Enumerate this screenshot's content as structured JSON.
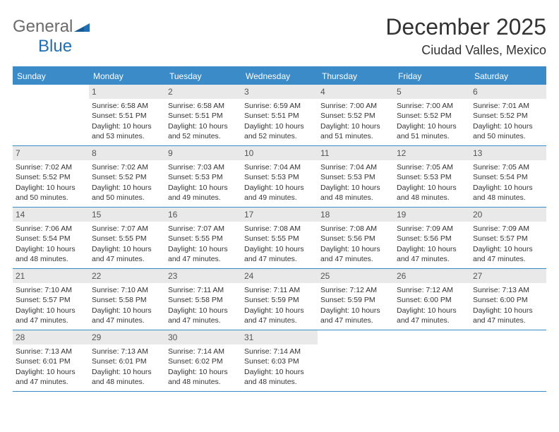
{
  "logo": {
    "word1": "General",
    "word2": "Blue"
  },
  "header": {
    "title": "December 2025",
    "subtitle": "Ciudad Valles, Mexico"
  },
  "colors": {
    "header_bar": "#3b8bc9",
    "daynum_bg": "#e9e9e9",
    "text": "#333333",
    "logo_gray": "#6b6b6b",
    "logo_blue": "#1f6fb2"
  },
  "weekdays": [
    "Sunday",
    "Monday",
    "Tuesday",
    "Wednesday",
    "Thursday",
    "Friday",
    "Saturday"
  ],
  "weeks": [
    [
      {
        "day": null
      },
      {
        "day": "1",
        "sunrise": "Sunrise: 6:58 AM",
        "sunset": "Sunset: 5:51 PM",
        "daylight": "Daylight: 10 hours and 53 minutes."
      },
      {
        "day": "2",
        "sunrise": "Sunrise: 6:58 AM",
        "sunset": "Sunset: 5:51 PM",
        "daylight": "Daylight: 10 hours and 52 minutes."
      },
      {
        "day": "3",
        "sunrise": "Sunrise: 6:59 AM",
        "sunset": "Sunset: 5:51 PM",
        "daylight": "Daylight: 10 hours and 52 minutes."
      },
      {
        "day": "4",
        "sunrise": "Sunrise: 7:00 AM",
        "sunset": "Sunset: 5:52 PM",
        "daylight": "Daylight: 10 hours and 51 minutes."
      },
      {
        "day": "5",
        "sunrise": "Sunrise: 7:00 AM",
        "sunset": "Sunset: 5:52 PM",
        "daylight": "Daylight: 10 hours and 51 minutes."
      },
      {
        "day": "6",
        "sunrise": "Sunrise: 7:01 AM",
        "sunset": "Sunset: 5:52 PM",
        "daylight": "Daylight: 10 hours and 50 minutes."
      }
    ],
    [
      {
        "day": "7",
        "sunrise": "Sunrise: 7:02 AM",
        "sunset": "Sunset: 5:52 PM",
        "daylight": "Daylight: 10 hours and 50 minutes."
      },
      {
        "day": "8",
        "sunrise": "Sunrise: 7:02 AM",
        "sunset": "Sunset: 5:52 PM",
        "daylight": "Daylight: 10 hours and 50 minutes."
      },
      {
        "day": "9",
        "sunrise": "Sunrise: 7:03 AM",
        "sunset": "Sunset: 5:53 PM",
        "daylight": "Daylight: 10 hours and 49 minutes."
      },
      {
        "day": "10",
        "sunrise": "Sunrise: 7:04 AM",
        "sunset": "Sunset: 5:53 PM",
        "daylight": "Daylight: 10 hours and 49 minutes."
      },
      {
        "day": "11",
        "sunrise": "Sunrise: 7:04 AM",
        "sunset": "Sunset: 5:53 PM",
        "daylight": "Daylight: 10 hours and 48 minutes."
      },
      {
        "day": "12",
        "sunrise": "Sunrise: 7:05 AM",
        "sunset": "Sunset: 5:53 PM",
        "daylight": "Daylight: 10 hours and 48 minutes."
      },
      {
        "day": "13",
        "sunrise": "Sunrise: 7:05 AM",
        "sunset": "Sunset: 5:54 PM",
        "daylight": "Daylight: 10 hours and 48 minutes."
      }
    ],
    [
      {
        "day": "14",
        "sunrise": "Sunrise: 7:06 AM",
        "sunset": "Sunset: 5:54 PM",
        "daylight": "Daylight: 10 hours and 48 minutes."
      },
      {
        "day": "15",
        "sunrise": "Sunrise: 7:07 AM",
        "sunset": "Sunset: 5:55 PM",
        "daylight": "Daylight: 10 hours and 47 minutes."
      },
      {
        "day": "16",
        "sunrise": "Sunrise: 7:07 AM",
        "sunset": "Sunset: 5:55 PM",
        "daylight": "Daylight: 10 hours and 47 minutes."
      },
      {
        "day": "17",
        "sunrise": "Sunrise: 7:08 AM",
        "sunset": "Sunset: 5:55 PM",
        "daylight": "Daylight: 10 hours and 47 minutes."
      },
      {
        "day": "18",
        "sunrise": "Sunrise: 7:08 AM",
        "sunset": "Sunset: 5:56 PM",
        "daylight": "Daylight: 10 hours and 47 minutes."
      },
      {
        "day": "19",
        "sunrise": "Sunrise: 7:09 AM",
        "sunset": "Sunset: 5:56 PM",
        "daylight": "Daylight: 10 hours and 47 minutes."
      },
      {
        "day": "20",
        "sunrise": "Sunrise: 7:09 AM",
        "sunset": "Sunset: 5:57 PM",
        "daylight": "Daylight: 10 hours and 47 minutes."
      }
    ],
    [
      {
        "day": "21",
        "sunrise": "Sunrise: 7:10 AM",
        "sunset": "Sunset: 5:57 PM",
        "daylight": "Daylight: 10 hours and 47 minutes."
      },
      {
        "day": "22",
        "sunrise": "Sunrise: 7:10 AM",
        "sunset": "Sunset: 5:58 PM",
        "daylight": "Daylight: 10 hours and 47 minutes."
      },
      {
        "day": "23",
        "sunrise": "Sunrise: 7:11 AM",
        "sunset": "Sunset: 5:58 PM",
        "daylight": "Daylight: 10 hours and 47 minutes."
      },
      {
        "day": "24",
        "sunrise": "Sunrise: 7:11 AM",
        "sunset": "Sunset: 5:59 PM",
        "daylight": "Daylight: 10 hours and 47 minutes."
      },
      {
        "day": "25",
        "sunrise": "Sunrise: 7:12 AM",
        "sunset": "Sunset: 5:59 PM",
        "daylight": "Daylight: 10 hours and 47 minutes."
      },
      {
        "day": "26",
        "sunrise": "Sunrise: 7:12 AM",
        "sunset": "Sunset: 6:00 PM",
        "daylight": "Daylight: 10 hours and 47 minutes."
      },
      {
        "day": "27",
        "sunrise": "Sunrise: 7:13 AM",
        "sunset": "Sunset: 6:00 PM",
        "daylight": "Daylight: 10 hours and 47 minutes."
      }
    ],
    [
      {
        "day": "28",
        "sunrise": "Sunrise: 7:13 AM",
        "sunset": "Sunset: 6:01 PM",
        "daylight": "Daylight: 10 hours and 47 minutes."
      },
      {
        "day": "29",
        "sunrise": "Sunrise: 7:13 AM",
        "sunset": "Sunset: 6:01 PM",
        "daylight": "Daylight: 10 hours and 48 minutes."
      },
      {
        "day": "30",
        "sunrise": "Sunrise: 7:14 AM",
        "sunset": "Sunset: 6:02 PM",
        "daylight": "Daylight: 10 hours and 48 minutes."
      },
      {
        "day": "31",
        "sunrise": "Sunrise: 7:14 AM",
        "sunset": "Sunset: 6:03 PM",
        "daylight": "Daylight: 10 hours and 48 minutes."
      },
      {
        "day": null
      },
      {
        "day": null
      },
      {
        "day": null
      }
    ]
  ]
}
